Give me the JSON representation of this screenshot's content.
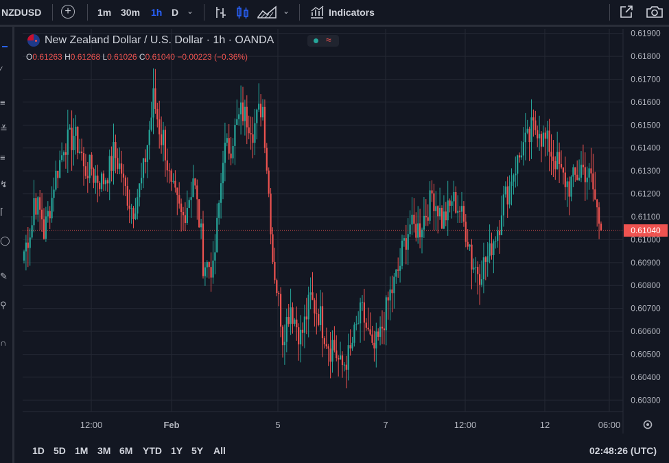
{
  "toolbar": {
    "symbol": "NZDUSD",
    "intervals": [
      "1m",
      "30m",
      "1h",
      "D"
    ],
    "active_interval": "1h",
    "indicators_label": "Indicators",
    "icons": [
      "plus-circle-icon",
      "chevron-down-icon",
      "bar-chart-icon",
      "candles-icon",
      "area-chart-icon",
      "indicators-icon",
      "fullscreen-icon",
      "camera-icon"
    ]
  },
  "legend": {
    "title": "New Zealand Dollar / U.S. Dollar · 1h · OANDA",
    "open_label": "O",
    "open": "0.61263",
    "high_label": "H",
    "high": "0.61268",
    "low_label": "L",
    "low": "0.61026",
    "close_label": "C",
    "close": "0.61040",
    "change": "−0.00223 (−0.36%)"
  },
  "colors": {
    "up": "#26a69a",
    "down": "#ef5350",
    "background": "#131722",
    "grid": "#242834",
    "axis_text": "#b2b5be"
  },
  "chart_data": {
    "type": "candlestick",
    "symbol": "NZDUSD",
    "interval": "1h",
    "source": "OANDA",
    "y_ticks": [
      "0.61900",
      "0.61800",
      "0.61700",
      "0.61600",
      "0.61500",
      "0.61400",
      "0.61300",
      "0.61200",
      "0.61100",
      "0.61000",
      "0.60900",
      "0.60800",
      "0.60700",
      "0.60600",
      "0.60500",
      "0.60400",
      "0.60300"
    ],
    "ylim": [
      0.6025,
      0.6192
    ],
    "x_ticks": [
      "12:00",
      "Feb",
      "5",
      "7",
      "12:00",
      "12",
      "06:00"
    ],
    "last_price": "0.61040",
    "close_path": [
      [
        0.6095,
        0.611
      ],
      [
        0.6118,
        0.6108
      ],
      [
        0.6103,
        0.6122
      ],
      [
        0.6125,
        0.614
      ],
      [
        0.6142,
        0.6144
      ],
      [
        0.6146,
        0.6135
      ],
      [
        0.613,
        0.6132
      ],
      [
        0.6128,
        0.6125
      ],
      [
        0.6126,
        0.6135
      ],
      [
        0.6138,
        0.6128
      ],
      [
        0.6124,
        0.6112
      ],
      [
        0.6114,
        0.6128
      ],
      [
        0.613,
        0.616
      ],
      [
        0.6162,
        0.614
      ],
      [
        0.6145,
        0.6115
      ],
      [
        0.612,
        0.6108
      ],
      [
        0.611,
        0.6125
      ],
      [
        0.6128,
        0.6095
      ],
      [
        0.609,
        0.6088
      ],
      [
        0.6085,
        0.6135
      ],
      [
        0.6138,
        0.6142
      ],
      [
        0.6145,
        0.6158
      ],
      [
        0.6155,
        0.615
      ],
      [
        0.6148,
        0.616
      ],
      [
        0.6158,
        0.6095
      ],
      [
        0.6092,
        0.606
      ],
      [
        0.6058,
        0.6075
      ],
      [
        0.6068,
        0.6055
      ],
      [
        0.606,
        0.6078
      ],
      [
        0.6072,
        0.6065
      ],
      [
        0.6062,
        0.605
      ],
      [
        0.6055,
        0.6042
      ],
      [
        0.6045,
        0.6052
      ],
      [
        0.6055,
        0.607
      ],
      [
        0.6068,
        0.6052
      ],
      [
        0.605,
        0.606
      ],
      [
        0.6062,
        0.608
      ],
      [
        0.6078,
        0.6092
      ],
      [
        0.6095,
        0.611
      ],
      [
        0.6105,
        0.6105
      ],
      [
        0.6108,
        0.6118
      ],
      [
        0.612,
        0.611
      ],
      [
        0.6108,
        0.6115
      ],
      [
        0.6118,
        0.6112
      ],
      [
        0.611,
        0.6095
      ],
      [
        0.609,
        0.6085
      ],
      [
        0.6088,
        0.6095
      ],
      [
        0.6098,
        0.611
      ],
      [
        0.6115,
        0.6125
      ],
      [
        0.6128,
        0.6138
      ],
      [
        0.614,
        0.6145
      ],
      [
        0.6148,
        0.615
      ],
      [
        0.6145,
        0.614
      ],
      [
        0.6138,
        0.613
      ],
      [
        0.6128,
        0.6122
      ],
      [
        0.6125,
        0.613
      ],
      [
        0.6132,
        0.6126
      ],
      [
        0.6126,
        0.6104
      ]
    ]
  },
  "range_bar": {
    "ranges": [
      "1D",
      "5D",
      "1M",
      "3M",
      "6M",
      "YTD",
      "1Y",
      "5Y",
      "All"
    ],
    "clock": "02:48:26 (UTC)"
  }
}
